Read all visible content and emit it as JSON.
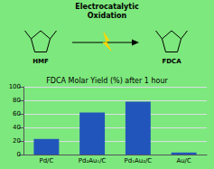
{
  "chart_data": {
    "type": "bar",
    "title": "FDCA Molar Yield (%) after 1 hour",
    "annotations": [
      "Electrocatalytic",
      "Oxidation",
      "HMF",
      "FDCA"
    ],
    "categories": [
      "Pd/C",
      "Pd₂Au₁/C",
      "Pd₁Au₂/C",
      "Au/C"
    ],
    "values": [
      23,
      62,
      78,
      3
    ],
    "color": "#2255bb",
    "ylim": [
      0,
      100
    ],
    "yticks": [
      0,
      20,
      40,
      60,
      80,
      100
    ],
    "grid": true
  }
}
